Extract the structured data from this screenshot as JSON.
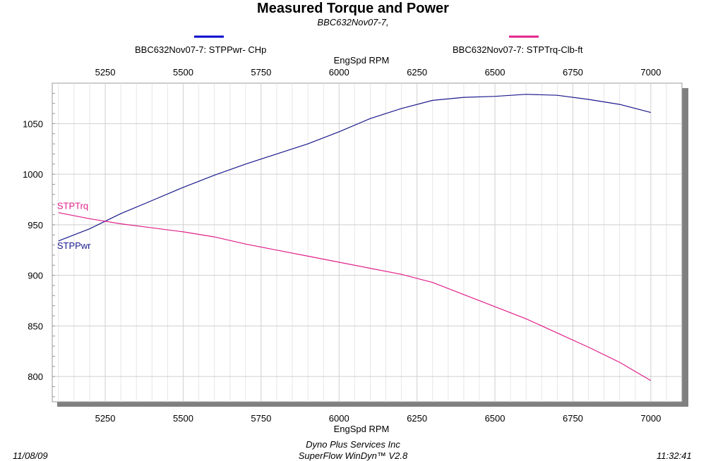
{
  "chart_data": {
    "type": "line",
    "title": "Measured Torque and Power",
    "subtitle": "BBC632Nov07-7,",
    "xlabel_top": "EngSpd  RPM",
    "xlabel_bottom": "EngSpd  RPM",
    "x_ticks": [
      5250,
      5500,
      5750,
      6000,
      6250,
      6500,
      6750,
      7000
    ],
    "y_ticks": [
      800,
      850,
      900,
      950,
      1000,
      1050
    ],
    "xlim": [
      5080,
      7100
    ],
    "ylim": [
      775,
      1090
    ],
    "grid": true,
    "series": [
      {
        "name": "BBC632Nov07-7: STPPwr- CHp",
        "label": "STPPwr",
        "color": "#1a1a8c",
        "legend_color": "#0000cc",
        "x": [
          5100,
          5200,
          5300,
          5400,
          5500,
          5600,
          5700,
          5800,
          5900,
          6000,
          6100,
          6200,
          6300,
          6400,
          6500,
          6600,
          6700,
          6800,
          6900,
          7000
        ],
        "y": [
          934,
          946,
          961,
          974,
          987,
          999,
          1010,
          1020,
          1030,
          1042,
          1055,
          1065,
          1073,
          1076,
          1077,
          1079,
          1078,
          1074,
          1069,
          1061
        ]
      },
      {
        "name": "BBC632Nov07-7: STPTrq-Clb-ft",
        "label": "STPTrq",
        "color": "#e0208a",
        "legend_color": "#e0208a",
        "x": [
          5100,
          5200,
          5300,
          5400,
          5500,
          5600,
          5700,
          5800,
          5900,
          6000,
          6100,
          6200,
          6300,
          6400,
          6500,
          6600,
          6700,
          6800,
          6900,
          7000
        ],
        "y": [
          962,
          956,
          951,
          947,
          943,
          938,
          931,
          925,
          919,
          913,
          907,
          901,
          893,
          881,
          869,
          857,
          843,
          829,
          814,
          796
        ]
      }
    ]
  },
  "footer": {
    "date": "11/08/09",
    "company": "Dyno Plus Services Inc",
    "software": "SuperFlow WinDyn™ V2.8",
    "time": "11:32:41"
  }
}
